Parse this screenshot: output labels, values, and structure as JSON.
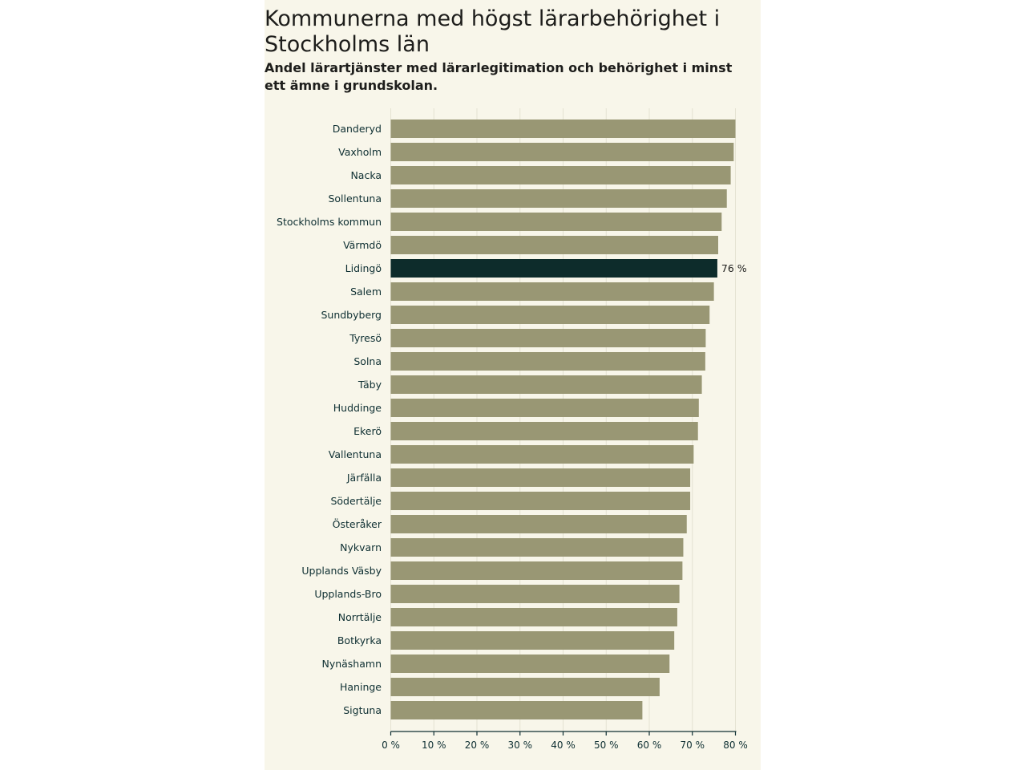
{
  "chart_data": {
    "type": "bar",
    "orientation": "horizontal",
    "title": "Kommunerna med högst lärarbehörighet i Stockholms län",
    "subtitle": "Andel lärartjänster med lärarlegitimation och behörighet i minst ett ämne i grundskolan.",
    "categories": [
      "Danderyd",
      "Vaxholm",
      "Nacka",
      "Sollentuna",
      "Stockholms kommun",
      "Värmdö",
      "Lidingö",
      "Salem",
      "Sundbyberg",
      "Tyresö",
      "Solna",
      "Täby",
      "Huddinge",
      "Ekerö",
      "Vallentuna",
      "Järfälla",
      "Södertälje",
      "Österåker",
      "Nykvarn",
      "Upplands Väsby",
      "Upplands-Bro",
      "Norrtälje",
      "Botkyrka",
      "Nynäshamn",
      "Haninge",
      "Sigtuna"
    ],
    "values": [
      80,
      79.6,
      78.9,
      78,
      76.8,
      76,
      75.8,
      75,
      74,
      73.1,
      73,
      72.2,
      71.5,
      71.3,
      70.3,
      69.5,
      69.5,
      68.7,
      67.9,
      67.7,
      67,
      66.5,
      65.8,
      64.7,
      62.4,
      58.4
    ],
    "highlight": {
      "category": "Lidingö",
      "label": "76 %"
    },
    "xlim": [
      0,
      80
    ],
    "xticks": [
      0,
      10,
      20,
      30,
      40,
      50,
      60,
      70,
      80
    ],
    "xtick_labels": [
      "0 %",
      "10 %",
      "20 %",
      "30 %",
      "40 %",
      "50 %",
      "60 %",
      "70 %",
      "80 %"
    ],
    "colors": {
      "bar": "#999774",
      "highlight": "#0d2c2b",
      "background": "#f8f6ea",
      "grid": "#e4e2d2",
      "axis": "#0e2f32"
    }
  }
}
